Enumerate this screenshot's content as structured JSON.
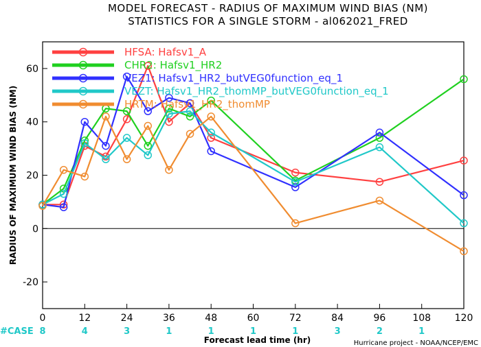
{
  "chart_data": {
    "type": "line",
    "title": "MODEL FORECAST - RADIUS OF MAXIMUM WIND BIAS (NM)",
    "subtitle": "STATISTICS FOR A SINGLE STORM - al062021_FRED",
    "xlabel": "Forecast lead time (hr)",
    "ylabel": "RADIUS OF MAXIMUM WIND BIAS (NM)",
    "xlim": [
      0,
      120
    ],
    "ylim": [
      -30,
      70
    ],
    "xticks": [
      0,
      12,
      24,
      36,
      48,
      60,
      72,
      84,
      96,
      108,
      120
    ],
    "yticks": [
      -20,
      0,
      20,
      40,
      60
    ],
    "zero_line": true,
    "grid": false,
    "legend_position": "top-left",
    "series": [
      {
        "name": "HFSA: Hafsv1_A",
        "color": "#ff4040",
        "x": [
          0,
          6,
          12,
          18,
          24,
          30,
          36,
          42,
          48,
          72,
          96,
          120
        ],
        "y": [
          9,
          9,
          31,
          27,
          41,
          61,
          40,
          47,
          34,
          21,
          17.5,
          25.5
        ]
      },
      {
        "name": "CHR2: Hafsv1_HR2",
        "color": "#20d020",
        "x": [
          0,
          6,
          12,
          18,
          24,
          30,
          36,
          42,
          48,
          72,
          96,
          120
        ],
        "y": [
          9,
          15,
          33,
          45,
          44,
          31,
          45,
          42,
          48,
          18,
          34,
          56
        ]
      },
      {
        "name": "VEZ1: Hafsv1_HR2_butVEG0function_eq_1",
        "color": "#3030ff",
        "x": [
          0,
          6,
          12,
          18,
          24,
          30,
          36,
          42,
          48,
          72,
          96,
          120
        ],
        "y": [
          9,
          8,
          40,
          31,
          57,
          44,
          49,
          47,
          29,
          15.5,
          36,
          12.5
        ]
      },
      {
        "name": "VEZT: Hafsv1_HR2_thomMP_butVEG0function_eq_1",
        "color": "#20c8c8",
        "x": [
          0,
          6,
          12,
          18,
          24,
          30,
          36,
          42,
          48,
          72,
          96,
          120
        ],
        "y": [
          9,
          13,
          32,
          26,
          34,
          27.5,
          43,
          44,
          36,
          17.5,
          30.5,
          2
        ]
      },
      {
        "name": "HRTM: Hafsv1_HR2_thomMP",
        "color": "#f08c30",
        "x": [
          0,
          6,
          12,
          18,
          24,
          30,
          36,
          42,
          48,
          72,
          96,
          120
        ],
        "y": [
          8.5,
          22,
          19.5,
          42,
          26,
          38.5,
          22,
          35.5,
          42,
          2,
          10.5,
          -8.5
        ]
      }
    ],
    "cases": {
      "label": "#CASE",
      "x": [
        0,
        12,
        24,
        36,
        48,
        60,
        72,
        84,
        96,
        108
      ],
      "values": [
        "8",
        "4",
        "3",
        "1",
        "1",
        "1",
        "1",
        "3",
        "2",
        "1"
      ]
    },
    "credit": "Hurricane project - NOAA/NCEP/EMC"
  }
}
